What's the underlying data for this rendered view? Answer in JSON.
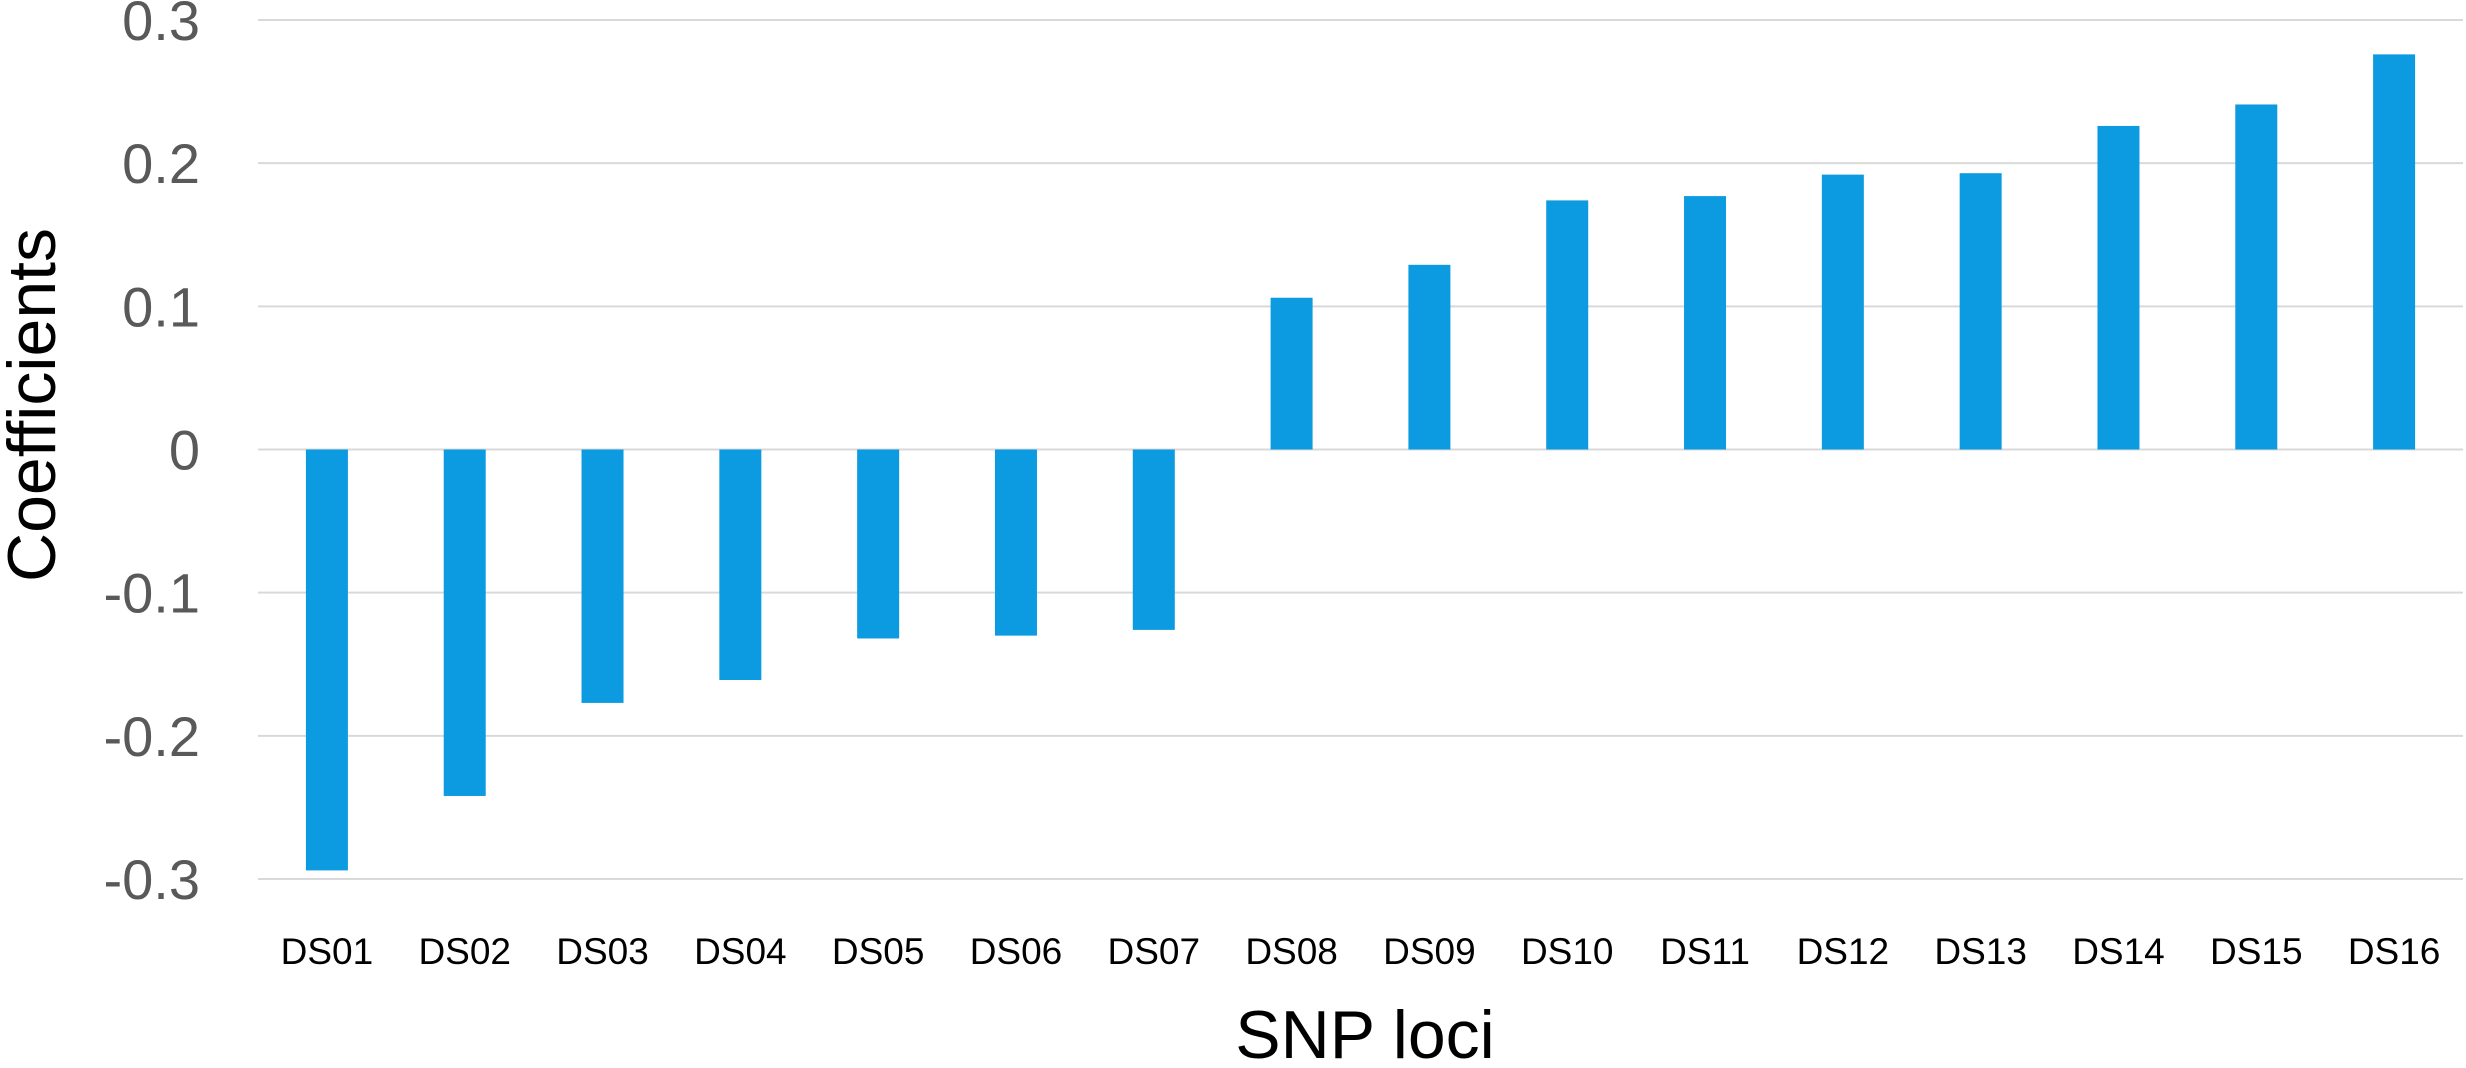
{
  "chart_data": {
    "type": "bar",
    "title": "",
    "xlabel": "SNP loci",
    "ylabel": "Coefficients",
    "ylim": [
      -0.3,
      0.3
    ],
    "yticks": [
      0.3,
      0.2,
      0.1,
      0,
      -0.1,
      -0.2,
      -0.3
    ],
    "ytick_labels": [
      "0.3",
      "0.2",
      "0.1",
      "0",
      "-0.1",
      "-0.2",
      "-0.3"
    ],
    "grid": true,
    "legend": "none",
    "bar_color": "#0c9be0",
    "categories": [
      "DS01",
      "DS02",
      "DS03",
      "DS04",
      "DS05",
      "DS06",
      "DS07",
      "DS08",
      "DS09",
      "DS10",
      "DS11",
      "DS12",
      "DS13",
      "DS14",
      "DS15",
      "DS16"
    ],
    "values": [
      -0.294,
      -0.242,
      -0.177,
      -0.161,
      -0.132,
      -0.13,
      -0.126,
      0.106,
      0.129,
      0.174,
      0.177,
      0.192,
      0.193,
      0.226,
      0.241,
      0.276
    ]
  }
}
